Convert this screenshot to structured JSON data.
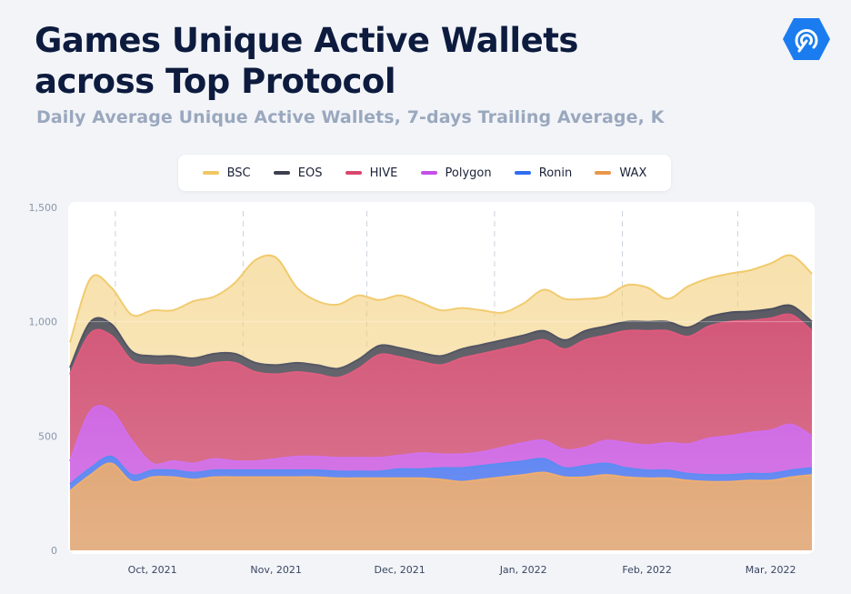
{
  "header": {
    "title_line1": "Games Unique Active Wallets",
    "title_line2": "across Top Protocol",
    "subtitle": "Daily Average Unique Active Wallets, 7-days Trailing Average, K"
  },
  "logo": {
    "icon": "signal-hexagon-icon",
    "color": "#1b7cf0"
  },
  "chart_data": {
    "type": "area",
    "stacked": true,
    "title": "Games Unique Active Wallets across Top Protocol",
    "subtitle": "Daily Average Unique Active Wallets, 7-days Trailing Average, K",
    "xlabel": "",
    "ylabel": "",
    "ylim": [
      0,
      1500
    ],
    "yticks": [
      {
        "value": 0,
        "label": "0"
      },
      {
        "value": 500,
        "label": "500"
      },
      {
        "value": 1000,
        "label": "1,000"
      },
      {
        "value": 1500,
        "label": "1,500"
      }
    ],
    "xticks": [
      "Oct, 2021",
      "Nov, 2021",
      "Dec, 2021",
      "Jan, 2022",
      "Feb, 2022",
      "Mar, 2022"
    ],
    "grid": {
      "vertical_dashed": true
    },
    "legend": "top",
    "x": [
      "2021-09-20",
      "2021-09-25",
      "2021-09-30",
      "2021-10-05",
      "2021-10-10",
      "2021-10-15",
      "2021-10-20",
      "2021-10-25",
      "2021-10-30",
      "2021-11-04",
      "2021-11-09",
      "2021-11-14",
      "2021-11-19",
      "2021-11-24",
      "2021-11-29",
      "2021-12-04",
      "2021-12-09",
      "2021-12-14",
      "2021-12-19",
      "2021-12-24",
      "2021-12-29",
      "2022-01-03",
      "2022-01-08",
      "2022-01-13",
      "2022-01-18",
      "2022-01-23",
      "2022-01-28",
      "2022-02-02",
      "2022-02-07",
      "2022-02-12",
      "2022-02-17",
      "2022-02-22",
      "2022-02-27",
      "2022-03-04",
      "2022-03-09",
      "2022-03-14",
      "2022-03-19"
    ],
    "series": [
      {
        "name": "WAX",
        "color": "#e8974a",
        "values": [
          260,
          330,
          380,
          300,
          320,
          320,
          310,
          320,
          320,
          320,
          320,
          320,
          320,
          315,
          315,
          315,
          315,
          315,
          310,
          300,
          310,
          320,
          330,
          340,
          320,
          320,
          330,
          320,
          315,
          315,
          305,
          300,
          300,
          305,
          305,
          320,
          330
        ]
      },
      {
        "name": "Ronin",
        "color": "#2f6df0",
        "values": [
          30,
          30,
          30,
          30,
          30,
          30,
          30,
          30,
          30,
          30,
          30,
          30,
          30,
          30,
          30,
          30,
          40,
          40,
          50,
          60,
          60,
          60,
          60,
          60,
          40,
          50,
          50,
          40,
          35,
          35,
          30,
          30,
          30,
          30,
          30,
          30,
          30
        ]
      },
      {
        "name": "Polygon",
        "color": "#c64ee8",
        "values": [
          100,
          250,
          200,
          150,
          30,
          40,
          40,
          50,
          40,
          40,
          50,
          60,
          60,
          60,
          60,
          60,
          60,
          70,
          60,
          60,
          60,
          70,
          80,
          80,
          80,
          80,
          100,
          110,
          110,
          120,
          130,
          160,
          170,
          180,
          190,
          200,
          140
        ]
      },
      {
        "name": "HIVE",
        "color": "#d9476d",
        "values": [
          380,
          340,
          330,
          350,
          430,
          420,
          420,
          420,
          430,
          390,
          370,
          370,
          360,
          350,
          390,
          450,
          430,
          400,
          390,
          420,
          430,
          430,
          430,
          440,
          440,
          470,
          460,
          490,
          500,
          490,
          470,
          490,
          500,
          490,
          490,
          480,
          460
        ]
      },
      {
        "name": "EOS",
        "color": "#3d3f4f",
        "values": [
          30,
          50,
          50,
          40,
          40,
          40,
          40,
          40,
          40,
          40,
          40,
          40,
          40,
          40,
          40,
          40,
          40,
          40,
          40,
          40,
          40,
          40,
          40,
          40,
          40,
          40,
          40,
          40,
          40,
          40,
          40,
          40,
          40,
          40,
          40,
          40,
          40
        ]
      },
      {
        "name": "BSC",
        "color": "#f0c764",
        "values": [
          110,
          190,
          160,
          160,
          200,
          200,
          250,
          250,
          310,
          450,
          470,
          330,
          280,
          280,
          280,
          200,
          230,
          220,
          200,
          180,
          150,
          120,
          140,
          180,
          180,
          140,
          130,
          160,
          150,
          100,
          180,
          170,
          170,
          180,
          200,
          220,
          210
        ]
      }
    ],
    "legend_order": [
      "BSC",
      "EOS",
      "HIVE",
      "Polygon",
      "Ronin",
      "WAX"
    ]
  }
}
